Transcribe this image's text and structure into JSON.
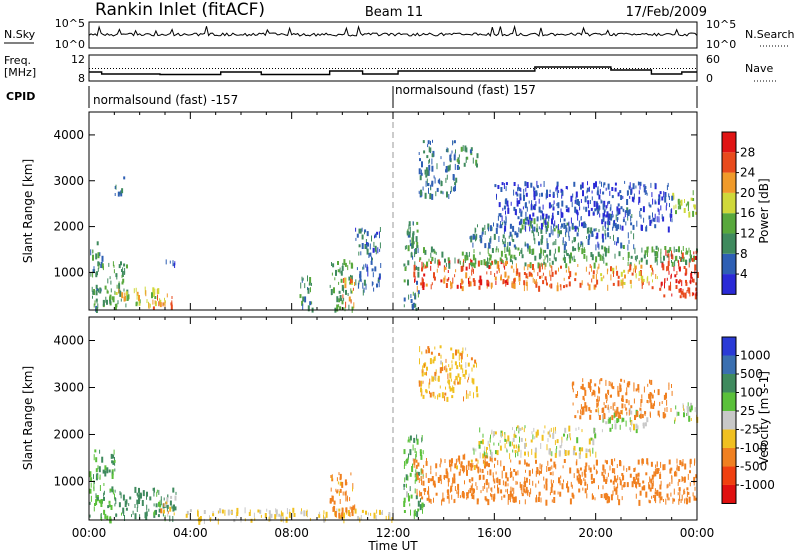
{
  "header": {
    "station": "Rankin Inlet (fitACF)",
    "beam": "Beam 11",
    "date": "17/Feb/2009"
  },
  "panels": {
    "nsky": {
      "left_label": "N.Sky",
      "right_label": "N.Search",
      "left_ticks": [
        "10^5",
        "10^0"
      ],
      "right_ticks": [
        "10^5",
        "10^0"
      ]
    },
    "freq": {
      "left_label_1": "Freq.",
      "left_label_2": "[MHz]",
      "right_label": "Nave",
      "left_ticks": [
        "12",
        "8"
      ],
      "right_ticks": [
        "60",
        "0"
      ]
    },
    "cpid": {
      "label": "CPID",
      "segments": [
        "normalsound (fast) -157",
        "normalsound (fast) 157"
      ]
    }
  },
  "chart_data": [
    {
      "type": "heatmap",
      "name": "power",
      "ylabel": "Slant Range [km]",
      "ylim": [
        180,
        4500
      ],
      "yticks": [
        "1000",
        "2000",
        "3000",
        "4000"
      ],
      "xlim_hours": [
        0,
        24
      ],
      "colorbar": {
        "label": "Power [dB]",
        "ticks": [
          "4",
          "8",
          "12",
          "16",
          "20",
          "24",
          "28"
        ],
        "colors": [
          "#2a2ad6",
          "#2e5fb4",
          "#3f8a5e",
          "#58a83c",
          "#cfd83a",
          "#f09a2a",
          "#e84a1c",
          "#e01414"
        ]
      },
      "blobs": [
        {
          "t0": 0.0,
          "t1": 0.5,
          "r0": 200,
          "r1": 1700,
          "val": 10
        },
        {
          "t0": 0.5,
          "t1": 1.5,
          "r0": 300,
          "r1": 1300,
          "val": 12
        },
        {
          "t0": 1.0,
          "t1": 3.0,
          "r0": 300,
          "r1": 700,
          "val": 18
        },
        {
          "t0": 2.5,
          "t1": 3.3,
          "r0": 250,
          "r1": 550,
          "val": 24
        },
        {
          "t0": 1.0,
          "t1": 1.4,
          "r0": 2700,
          "r1": 3100,
          "val": 8
        },
        {
          "t0": 3.0,
          "t1": 3.4,
          "r0": 1100,
          "r1": 1300,
          "val": 6
        },
        {
          "t0": 8.3,
          "t1": 8.8,
          "r0": 200,
          "r1": 1000,
          "val": 10
        },
        {
          "t0": 9.5,
          "t1": 10.4,
          "r0": 200,
          "r1": 1300,
          "val": 12
        },
        {
          "t0": 10.0,
          "t1": 10.5,
          "r0": 300,
          "r1": 900,
          "val": 22
        },
        {
          "t0": 10.5,
          "t1": 11.5,
          "r0": 600,
          "r1": 2000,
          "val": 6
        },
        {
          "t0": 12.4,
          "t1": 13.0,
          "r0": 200,
          "r1": 2200,
          "val": 10
        },
        {
          "t0": 12.8,
          "t1": 16.5,
          "r0": 700,
          "r1": 1300,
          "val": 26
        },
        {
          "t0": 13.0,
          "t1": 24.0,
          "r0": 1200,
          "r1": 1600,
          "val": 12
        },
        {
          "t0": 16.5,
          "t1": 20.0,
          "r0": 700,
          "r1": 1200,
          "val": 24
        },
        {
          "t0": 20.0,
          "t1": 22.5,
          "r0": 700,
          "r1": 1200,
          "val": 22
        },
        {
          "t0": 22.5,
          "t1": 24.0,
          "r0": 500,
          "r1": 1500,
          "val": 28
        },
        {
          "t0": 15.0,
          "t1": 20.0,
          "r0": 1600,
          "r1": 2100,
          "val": 8
        },
        {
          "t0": 17.0,
          "t1": 18.8,
          "r0": 1950,
          "r1": 2250,
          "val": 12
        },
        {
          "t0": 13.0,
          "t1": 14.5,
          "r0": 2700,
          "r1": 3900,
          "val": 8
        },
        {
          "t0": 14.5,
          "t1": 15.3,
          "r0": 3300,
          "r1": 3800,
          "val": 10
        },
        {
          "t0": 20.0,
          "t1": 21.5,
          "r0": 1600,
          "r1": 2500,
          "val": 6
        },
        {
          "t0": 23.0,
          "t1": 24.0,
          "r0": 2300,
          "r1": 2800,
          "val": 16
        },
        {
          "t0": 16.0,
          "t1": 23.0,
          "r0": 2000,
          "r1": 3000,
          "val": 4
        }
      ]
    },
    {
      "type": "heatmap",
      "name": "velocity",
      "ylabel": "Slant Range [km]",
      "ylim": [
        180,
        4500
      ],
      "yticks": [
        "1000",
        "2000",
        "3000",
        "4000"
      ],
      "xlim_hours": [
        0,
        24
      ],
      "xticks": [
        "00:00",
        "04:00",
        "08:00",
        "12:00",
        "16:00",
        "20:00",
        "00:00"
      ],
      "xlabel": "Time UT",
      "colorbar": {
        "label": "Velocity [m s-1]",
        "ticks": [
          "1000",
          "500",
          "100",
          "25",
          "-25",
          "-100",
          "-500",
          "-1000"
        ],
        "colors": [
          "#2a3ad6",
          "#3a6fb0",
          "#3f8a5e",
          "#5ac03a",
          "#c8c8c8",
          "#f0c020",
          "#f08020",
          "#f04010",
          "#e01010"
        ]
      },
      "blobs": [
        {
          "t0": 0.0,
          "t1": 1.0,
          "r0": 200,
          "r1": 1700,
          "val": 90
        },
        {
          "t0": 1.0,
          "t1": 3.5,
          "r0": 250,
          "r1": 900,
          "val": 150
        },
        {
          "t0": 2.8,
          "t1": 3.4,
          "r0": 300,
          "r1": 700,
          "val": -60
        },
        {
          "t0": 3.5,
          "t1": 12.0,
          "r0": 200,
          "r1": 450,
          "val": -40
        },
        {
          "t0": 9.5,
          "t1": 10.5,
          "r0": 300,
          "r1": 1200,
          "val": -150
        },
        {
          "t0": 12.4,
          "t1": 13.2,
          "r0": 300,
          "r1": 2000,
          "val": 80
        },
        {
          "t0": 12.8,
          "t1": 24.0,
          "r0": 600,
          "r1": 1500,
          "val": -300
        },
        {
          "t0": 14.0,
          "t1": 16.0,
          "r0": 1300,
          "r1": 1600,
          "val": -150
        },
        {
          "t0": 15.0,
          "t1": 20.0,
          "r0": 1600,
          "r1": 2200,
          "val": 0
        },
        {
          "t0": 23.0,
          "t1": 24.0,
          "r0": 2300,
          "r1": 2700,
          "val": 0
        },
        {
          "t0": 13.0,
          "t1": 15.3,
          "r0": 2800,
          "r1": 3900,
          "val": -80
        },
        {
          "t0": 20.0,
          "t1": 22.0,
          "r0": 2100,
          "r1": 2600,
          "val": 10
        },
        {
          "t0": 19.0,
          "t1": 23.0,
          "r0": 2400,
          "r1": 3200,
          "val": -200
        }
      ]
    }
  ]
}
